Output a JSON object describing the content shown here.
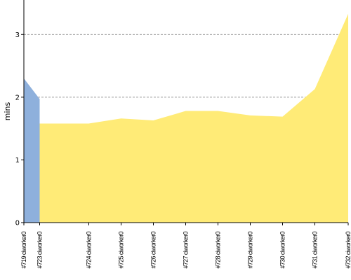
{
  "chart_data": {
    "type": "area",
    "ylabel": "mins",
    "ylim": [
      0,
      3.55
    ],
    "yticks": [
      0,
      1,
      2,
      3
    ],
    "grid": "y-dashed",
    "categories": [
      "#719 ciworker0",
      "#723 ciworker0",
      "#724 ciworker0",
      "#725 ciworker0",
      "#726 ciworker0",
      "#727 ciworker0",
      "#728 ciworker0",
      "#729 ciworker0",
      "#730 ciworker0",
      "#731 ciworker0",
      "#732 ciworker0"
    ],
    "series": [
      {
        "color": "#8eb0dc",
        "points": [
          {
            "x": "#719 ciworker0",
            "y": 2.3
          },
          {
            "x": "#723 ciworker0",
            "y": 1.97
          }
        ]
      },
      {
        "color": "#ffeb77",
        "points": [
          {
            "x": "#723 ciworker0",
            "y": 1.97
          },
          {
            "x": "#723 ciworker0",
            "y": 1.58
          },
          {
            "x": "#724 ciworker0",
            "y": 1.58
          },
          {
            "x": "#725 ciworker0",
            "y": 1.66
          },
          {
            "x": "#726 ciworker0",
            "y": 1.63
          },
          {
            "x": "#727 ciworker0",
            "y": 1.78
          },
          {
            "x": "#728 ciworker0",
            "y": 1.78
          },
          {
            "x": "#729 ciworker0",
            "y": 1.71
          },
          {
            "x": "#730 ciworker0",
            "y": 1.69
          },
          {
            "x": "#731 ciworker0",
            "y": 2.13
          },
          {
            "x": "#732 ciworker0",
            "y": 3.33
          }
        ]
      }
    ]
  }
}
